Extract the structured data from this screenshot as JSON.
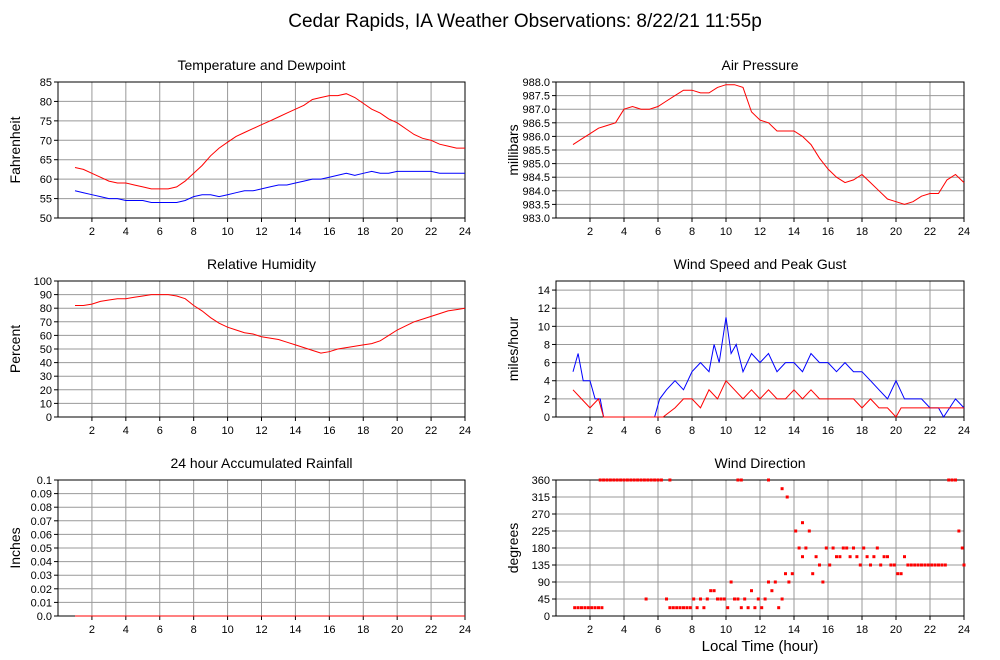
{
  "page": {
    "title": "Cedar Rapids, IA Weather Observations: 8/22/21 11:55p"
  },
  "colors": {
    "red": "#ff0000",
    "blue": "#0000ff",
    "grid": "#999999",
    "frame": "#000000"
  },
  "chart_data": [
    {
      "type": "line",
      "title": "Temperature and Dewpoint",
      "ylabel": "Fahrenheit",
      "xlabel": "",
      "xlim": [
        0,
        24
      ],
      "ylim": [
        50,
        85
      ],
      "xticks": [
        2,
        4,
        6,
        8,
        10,
        12,
        14,
        16,
        18,
        20,
        22,
        24
      ],
      "yticks": [
        50,
        55,
        60,
        65,
        70,
        75,
        80,
        85
      ],
      "grid": true,
      "series": [
        {
          "color": "#ff0000",
          "x": [
            1,
            1.5,
            2,
            2.5,
            3,
            3.5,
            4,
            4.5,
            5,
            5.5,
            6,
            6.5,
            7,
            7.5,
            8,
            8.5,
            9,
            9.5,
            10,
            10.5,
            11,
            11.5,
            12,
            12.5,
            13,
            13.5,
            14,
            14.5,
            15,
            15.5,
            16,
            16.5,
            17,
            17.5,
            18,
            18.5,
            19,
            19.5,
            20,
            20.5,
            21,
            21.5,
            22,
            22.5,
            23,
            23.5,
            24
          ],
          "y": [
            63,
            62.5,
            61.5,
            60.5,
            59.5,
            59,
            59,
            58.5,
            58,
            57.5,
            57.5,
            57.5,
            58,
            59.5,
            61.5,
            63.5,
            66,
            68,
            69.5,
            71,
            72,
            73,
            74,
            75,
            76,
            77,
            78,
            79,
            80.5,
            81,
            81.5,
            81.5,
            82,
            81,
            79.5,
            78,
            77,
            75.5,
            74.5,
            73,
            71.5,
            70.5,
            70,
            69,
            68.5,
            68,
            68
          ]
        },
        {
          "color": "#0000ff",
          "x": [
            1,
            1.5,
            2,
            2.5,
            3,
            3.5,
            4,
            4.5,
            5,
            5.5,
            6,
            6.5,
            7,
            7.5,
            8,
            8.5,
            9,
            9.5,
            10,
            10.5,
            11,
            11.5,
            12,
            12.5,
            13,
            13.5,
            14,
            14.5,
            15,
            15.5,
            16,
            16.5,
            17,
            17.5,
            18,
            18.5,
            19,
            19.5,
            20,
            20.5,
            21,
            21.5,
            22,
            22.5,
            23,
            23.5,
            24
          ],
          "y": [
            57,
            56.5,
            56,
            55.5,
            55,
            55,
            54.5,
            54.5,
            54.5,
            54,
            54,
            54,
            54,
            54.5,
            55.5,
            56,
            56,
            55.5,
            56,
            56.5,
            57,
            57,
            57.5,
            58,
            58.5,
            58.5,
            59,
            59.5,
            60,
            60,
            60.5,
            61,
            61.5,
            61,
            61.5,
            62,
            61.5,
            61.5,
            62,
            62,
            62,
            62,
            62,
            61.5,
            61.5,
            61.5,
            61.5
          ]
        }
      ]
    },
    {
      "type": "line",
      "title": "Air Pressure",
      "ylabel": "millibars",
      "xlabel": "",
      "xlim": [
        0,
        24
      ],
      "ylim": [
        983.0,
        988.0
      ],
      "xticks": [
        2,
        4,
        6,
        8,
        10,
        12,
        14,
        16,
        18,
        20,
        22,
        24
      ],
      "yticks": [
        "983.0",
        "983.5",
        "984.0",
        "984.5",
        "985.0",
        "985.5",
        "986.0",
        "986.5",
        "987.0",
        "987.5",
        "988.0"
      ],
      "grid": true,
      "series": [
        {
          "color": "#ff0000",
          "x": [
            1,
            1.5,
            2,
            2.5,
            3,
            3.5,
            4,
            4.5,
            5,
            5.5,
            6,
            6.5,
            7,
            7.5,
            8,
            8.5,
            9,
            9.5,
            10,
            10.5,
            11,
            11.5,
            12,
            12.5,
            13,
            13.5,
            14,
            14.5,
            15,
            15.5,
            16,
            16.5,
            17,
            17.5,
            18,
            18.5,
            19,
            19.5,
            20,
            20.5,
            21,
            21.5,
            22,
            22.5,
            23,
            23.5,
            24
          ],
          "y": [
            985.7,
            985.9,
            986.1,
            986.3,
            986.4,
            986.5,
            987.0,
            987.1,
            987.0,
            987.0,
            987.1,
            987.3,
            987.5,
            987.7,
            987.7,
            987.6,
            987.6,
            987.8,
            987.9,
            987.9,
            987.8,
            986.9,
            986.6,
            986.5,
            986.2,
            986.2,
            986.2,
            986.0,
            985.7,
            985.2,
            984.8,
            984.5,
            984.3,
            984.4,
            984.6,
            984.3,
            984.0,
            983.7,
            983.6,
            983.5,
            983.6,
            983.8,
            983.9,
            983.9,
            984.4,
            984.6,
            984.3
          ]
        }
      ]
    },
    {
      "type": "line",
      "title": "Relative Humidity",
      "ylabel": "Percent",
      "xlabel": "",
      "xlim": [
        0,
        24
      ],
      "ylim": [
        0,
        100
      ],
      "xticks": [
        2,
        4,
        6,
        8,
        10,
        12,
        14,
        16,
        18,
        20,
        22,
        24
      ],
      "yticks": [
        0,
        10,
        20,
        30,
        40,
        50,
        60,
        70,
        80,
        90,
        100
      ],
      "grid": true,
      "series": [
        {
          "color": "#ff0000",
          "x": [
            1,
            1.5,
            2,
            2.5,
            3,
            3.5,
            4,
            4.5,
            5,
            5.5,
            6,
            6.5,
            7,
            7.5,
            8,
            8.5,
            9,
            9.5,
            10,
            10.5,
            11,
            11.5,
            12,
            12.5,
            13,
            13.5,
            14,
            14.5,
            15,
            15.5,
            16,
            16.5,
            17,
            17.5,
            18,
            18.5,
            19,
            19.5,
            20,
            20.5,
            21,
            21.5,
            22,
            22.5,
            23,
            23.5,
            24
          ],
          "y": [
            82,
            82,
            83,
            85,
            86,
            87,
            87,
            88,
            89,
            90,
            90,
            90,
            89,
            87,
            82,
            78,
            73,
            69,
            66,
            64,
            62,
            61,
            59,
            58,
            57,
            55,
            53,
            51,
            49,
            47,
            48,
            50,
            51,
            52,
            53,
            54,
            56,
            60,
            64,
            67,
            70,
            72,
            74,
            76,
            78,
            79,
            80
          ]
        }
      ]
    },
    {
      "type": "line",
      "title": "Wind Speed and Peak Gust",
      "ylabel": "miles/hour",
      "xlabel": "",
      "xlim": [
        0,
        24
      ],
      "ylim": [
        0,
        15
      ],
      "xticks": [
        2,
        4,
        6,
        8,
        10,
        12,
        14,
        16,
        18,
        20,
        22,
        24
      ],
      "yticks": [
        0,
        2,
        4,
        6,
        8,
        10,
        12,
        14
      ],
      "grid": true,
      "series": [
        {
          "color": "#0000ff",
          "x": [
            1,
            1.3,
            1.6,
            2.0,
            2.3,
            2.6,
            2.8,
            5.8,
            6.1,
            6.5,
            7.0,
            7.5,
            8.0,
            8.5,
            9.0,
            9.3,
            9.6,
            10.0,
            10.3,
            10.6,
            11.0,
            11.5,
            12.0,
            12.5,
            13.0,
            13.5,
            14.0,
            14.5,
            15.0,
            15.5,
            16.0,
            16.5,
            17.0,
            17.5,
            18.0,
            18.5,
            19.0,
            19.5,
            20.0,
            20.5,
            21.0,
            21.5,
            22.0,
            22.5,
            22.8,
            23.5,
            24.0
          ],
          "y": [
            5,
            7,
            4,
            4,
            2,
            2,
            0,
            0,
            2,
            3,
            4,
            3,
            5,
            6,
            5,
            8,
            6,
            11,
            7,
            8,
            5,
            7,
            6,
            7,
            5,
            6,
            6,
            5,
            7,
            6,
            6,
            5,
            6,
            5,
            5,
            4,
            3,
            2,
            4,
            2,
            2,
            2,
            1,
            1,
            0,
            2,
            1
          ]
        },
        {
          "color": "#ff0000",
          "x": [
            1,
            1.5,
            2.0,
            2.5,
            2.8,
            6.3,
            7.0,
            7.5,
            8.0,
            8.5,
            9.0,
            9.5,
            10.0,
            10.5,
            11.0,
            11.5,
            12.0,
            12.5,
            13.0,
            13.5,
            14.0,
            14.5,
            15.0,
            15.5,
            16.0,
            16.5,
            17.0,
            17.5,
            18.0,
            18.5,
            19.0,
            19.5,
            20.0,
            20.3,
            21.0,
            23.5,
            24.0
          ],
          "y": [
            3,
            2,
            1,
            2,
            0,
            0,
            1,
            2,
            2,
            1,
            3,
            2,
            4,
            3,
            2,
            3,
            2,
            3,
            2,
            2,
            3,
            2,
            3,
            2,
            2,
            2,
            2,
            2,
            1,
            2,
            1,
            1,
            0,
            1,
            1,
            1,
            1
          ]
        }
      ]
    },
    {
      "type": "line",
      "title": "24 hour Accumulated Rainfall",
      "ylabel": "Inches",
      "xlabel": "",
      "xlim": [
        0,
        24
      ],
      "ylim": [
        0,
        0.1
      ],
      "xticks": [
        2,
        4,
        6,
        8,
        10,
        12,
        14,
        16,
        18,
        20,
        22,
        24
      ],
      "yticks": [
        "0.0",
        "0.01",
        "0.02",
        "0.03",
        "0.04",
        "0.05",
        "0.06",
        "0.07",
        "0.08",
        "0.09",
        "0.1"
      ],
      "grid": true,
      "series": [
        {
          "color": "#ff0000",
          "x": [
            1,
            24
          ],
          "y": [
            0,
            0
          ]
        }
      ]
    },
    {
      "type": "scatter",
      "title": "Wind Direction",
      "ylabel": "degrees",
      "xlabel": "Local Time (hour)",
      "xlim": [
        0,
        24
      ],
      "ylim": [
        0,
        360
      ],
      "xticks": [
        2,
        4,
        6,
        8,
        10,
        12,
        14,
        16,
        18,
        20,
        22,
        24
      ],
      "yticks": [
        0,
        45,
        90,
        135,
        180,
        225,
        270,
        315,
        360
      ],
      "grid": true,
      "series": [
        {
          "color": "#ff0000",
          "x": [
            1.1,
            1.3,
            1.5,
            1.7,
            1.9,
            2.1,
            2.3,
            2.5,
            2.7,
            2.6,
            2.8,
            3.0,
            3.2,
            3.4,
            3.6,
            3.8,
            4.0,
            4.2,
            4.4,
            4.6,
            4.8,
            5.0,
            5.2,
            5.4,
            5.6,
            5.8,
            6.0,
            6.2,
            6.7,
            5.3,
            6.5,
            6.7,
            6.9,
            7.1,
            7.3,
            7.5,
            7.7,
            7.9,
            8.1,
            8.3,
            8.5,
            8.7,
            8.9,
            9.1,
            9.3,
            9.5,
            9.7,
            9.9,
            10.1,
            10.3,
            10.5,
            10.7,
            10.9,
            11.1,
            11.3,
            11.5,
            11.7,
            11.9,
            12.1,
            12.3,
            12.5,
            12.7,
            12.9,
            13.1,
            13.3,
            13.5,
            13.7,
            13.9,
            14.1,
            14.3,
            14.5,
            14.7,
            14.9,
            15.1,
            15.3,
            15.5,
            15.7,
            15.9,
            16.1,
            16.3,
            16.5,
            16.7,
            16.9,
            17.1,
            17.3,
            17.5,
            17.7,
            17.9,
            18.1,
            18.3,
            18.5,
            18.7,
            18.9,
            19.1,
            19.3,
            19.5,
            19.7,
            19.9,
            20.1,
            20.3,
            20.5,
            20.7,
            20.9,
            21.1,
            21.3,
            21.5,
            21.7,
            21.9,
            22.1,
            22.3,
            22.5,
            22.7,
            22.9,
            23.1,
            23.3,
            23.5,
            23.7,
            23.9,
            24.0,
            10.7,
            10.9,
            12.5,
            13.3,
            13.6,
            14.5
          ],
          "y": [
            22,
            22,
            22,
            22,
            22,
            22,
            22,
            22,
            22,
            360,
            360,
            360,
            360,
            360,
            360,
            360,
            360,
            360,
            360,
            360,
            360,
            360,
            360,
            360,
            360,
            360,
            360,
            360,
            360,
            45,
            45,
            22,
            22,
            22,
            22,
            22,
            22,
            22,
            45,
            22,
            45,
            22,
            45,
            67,
            67,
            45,
            45,
            45,
            22,
            90,
            45,
            45,
            22,
            45,
            22,
            67,
            22,
            45,
            22,
            45,
            90,
            67,
            90,
            22,
            45,
            112,
            90,
            112,
            225,
            180,
            157,
            180,
            225,
            112,
            157,
            135,
            90,
            180,
            135,
            180,
            157,
            157,
            180,
            180,
            157,
            180,
            157,
            135,
            180,
            157,
            135,
            157,
            180,
            135,
            157,
            157,
            135,
            135,
            112,
            112,
            157,
            135,
            135,
            135,
            135,
            135,
            135,
            135,
            135,
            135,
            135,
            135,
            135,
            360,
            360,
            360,
            225,
            180,
            135,
            360,
            360,
            360,
            337,
            315,
            247
          ]
        }
      ]
    }
  ]
}
